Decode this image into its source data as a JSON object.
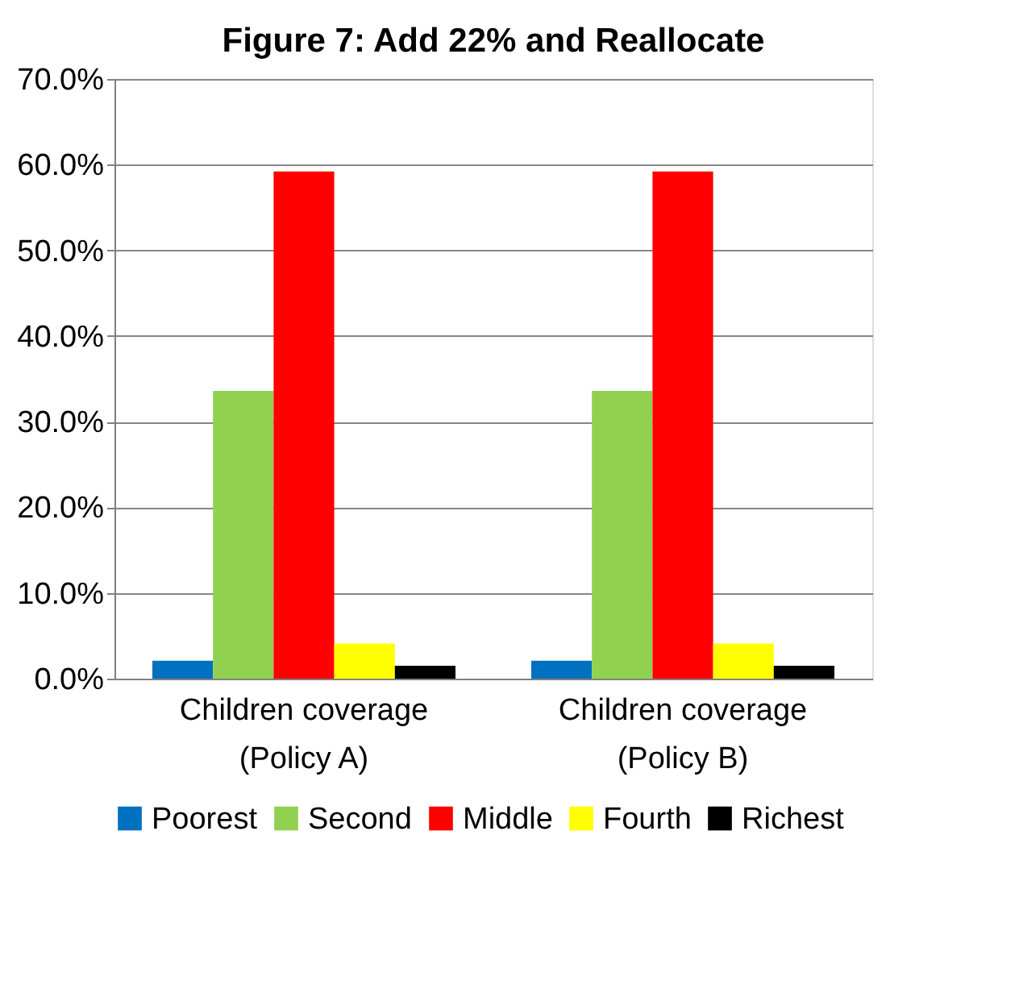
{
  "chart_data": {
    "type": "bar",
    "title": "Figure 7: Add 22% and Reallocate",
    "categories": [
      "Children coverage\n(Policy A)",
      "Children coverage\n(Policy B)"
    ],
    "series": [
      {
        "name": "Poorest",
        "color": "#0070c0",
        "values": [
          2.1,
          2.1
        ]
      },
      {
        "name": "Second",
        "color": "#92d050",
        "values": [
          33.6,
          33.6
        ]
      },
      {
        "name": "Middle",
        "color": "#ff0000",
        "values": [
          59.2,
          59.2
        ]
      },
      {
        "name": "Fourth",
        "color": "#ffff00",
        "values": [
          4.1,
          4.1
        ]
      },
      {
        "name": "Richest",
        "color": "#000000",
        "values": [
          1.5,
          1.5
        ]
      }
    ],
    "ylim": [
      0,
      70
    ],
    "yticks": [
      {
        "value": 0,
        "label": "0.0%"
      },
      {
        "value": 10,
        "label": "10.0%"
      },
      {
        "value": 20,
        "label": "20.0%"
      },
      {
        "value": 30,
        "label": "30.0%"
      },
      {
        "value": 40,
        "label": "40.0%"
      },
      {
        "value": 50,
        "label": "50.0%"
      },
      {
        "value": 60,
        "label": "60.0%"
      },
      {
        "value": 70,
        "label": "70.0%"
      }
    ],
    "grid": "y",
    "legend": "bottom"
  }
}
